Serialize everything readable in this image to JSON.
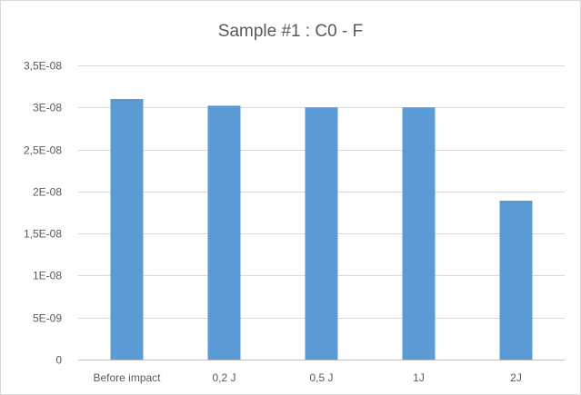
{
  "chart_data": {
    "type": "bar",
    "title": "Sample #1 : C0 - F",
    "xlabel": "",
    "ylabel": "",
    "categories": [
      "Before impact",
      "0,2 J",
      "0,5 J",
      "1J",
      "2J"
    ],
    "values": [
      3.1e-08,
      3.02e-08,
      3e-08,
      3e-08,
      1.89e-08
    ],
    "ylim": [
      0,
      3.5e-08
    ],
    "yticks": [
      0,
      5e-09,
      1e-08,
      1.5e-08,
      2e-08,
      2.5e-08,
      3e-08,
      3.5e-08
    ],
    "ytick_labels": [
      "0",
      "5E-09",
      "1E-08",
      "1,5E-08",
      "2E-08",
      "2,5E-08",
      "3E-08",
      "3,5E-08"
    ],
    "grid": true,
    "legend": "none",
    "bar_color": "#5b9bd5"
  }
}
